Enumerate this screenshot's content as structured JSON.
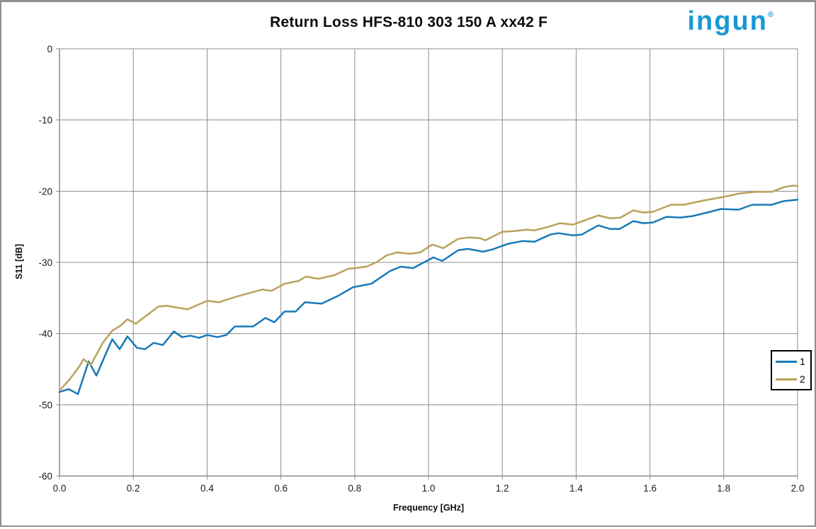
{
  "header": {
    "title": "Return Loss HFS-810 303 150 A xx42 F",
    "logo_text": "ingun",
    "logo_registered": "®",
    "logo_color": "#1899d6"
  },
  "chart_data": {
    "type": "line",
    "title": "Return Loss HFS-810 303 150 A xx42 F",
    "xlabel": "Frequency [GHz]",
    "ylabel": "S11 [dB]",
    "xlim": [
      0.0,
      2.0
    ],
    "ylim": [
      -60,
      0
    ],
    "x_ticks": [
      "0.0",
      "0.2",
      "0.4",
      "0.6",
      "0.8",
      "1.0",
      "1.2",
      "1.4",
      "1.6",
      "1.8",
      "2.0"
    ],
    "y_ticks": [
      "0",
      "-10",
      "-20",
      "-30",
      "-40",
      "-50",
      "-60"
    ],
    "grid": true,
    "legend_position": "right",
    "colors": {
      "grid": "#8c8c8c",
      "axis": "#8c8c8c",
      "tick_label": "#1a1a1a"
    },
    "series": [
      {
        "name": "1",
        "color": "#1879b8",
        "points": [
          [
            0.0,
            -48.2
          ],
          [
            0.025,
            -47.8
          ],
          [
            0.05,
            -48.5
          ],
          [
            0.079,
            -43.9
          ],
          [
            0.1,
            -45.9
          ],
          [
            0.125,
            -42.9
          ],
          [
            0.143,
            -40.8
          ],
          [
            0.163,
            -42.2
          ],
          [
            0.184,
            -40.4
          ],
          [
            0.21,
            -42.0
          ],
          [
            0.232,
            -42.2
          ],
          [
            0.255,
            -41.3
          ],
          [
            0.28,
            -41.6
          ],
          [
            0.31,
            -39.7
          ],
          [
            0.332,
            -40.5
          ],
          [
            0.355,
            -40.3
          ],
          [
            0.378,
            -40.6
          ],
          [
            0.4,
            -40.2
          ],
          [
            0.428,
            -40.5
          ],
          [
            0.452,
            -40.2
          ],
          [
            0.475,
            -39.0
          ],
          [
            0.525,
            -39.0
          ],
          [
            0.558,
            -37.8
          ],
          [
            0.582,
            -38.4
          ],
          [
            0.61,
            -36.9
          ],
          [
            0.64,
            -36.9
          ],
          [
            0.665,
            -35.6
          ],
          [
            0.71,
            -35.8
          ],
          [
            0.755,
            -34.7
          ],
          [
            0.795,
            -33.5
          ],
          [
            0.845,
            -33.0
          ],
          [
            0.896,
            -31.2
          ],
          [
            0.925,
            -30.6
          ],
          [
            0.958,
            -30.8
          ],
          [
            1.013,
            -29.3
          ],
          [
            1.037,
            -29.8
          ],
          [
            1.08,
            -28.3
          ],
          [
            1.107,
            -28.1
          ],
          [
            1.148,
            -28.5
          ],
          [
            1.172,
            -28.2
          ],
          [
            1.215,
            -27.4
          ],
          [
            1.255,
            -27.0
          ],
          [
            1.287,
            -27.1
          ],
          [
            1.33,
            -26.1
          ],
          [
            1.352,
            -25.9
          ],
          [
            1.39,
            -26.2
          ],
          [
            1.415,
            -26.1
          ],
          [
            1.46,
            -24.8
          ],
          [
            1.492,
            -25.3
          ],
          [
            1.518,
            -25.3
          ],
          [
            1.555,
            -24.2
          ],
          [
            1.582,
            -24.5
          ],
          [
            1.608,
            -24.4
          ],
          [
            1.645,
            -23.6
          ],
          [
            1.682,
            -23.7
          ],
          [
            1.715,
            -23.5
          ],
          [
            1.755,
            -23.0
          ],
          [
            1.792,
            -22.5
          ],
          [
            1.84,
            -22.6
          ],
          [
            1.877,
            -21.9
          ],
          [
            1.93,
            -21.9
          ],
          [
            1.962,
            -21.4
          ],
          [
            2.0,
            -21.2
          ]
        ]
      },
      {
        "name": "2",
        "color": "#b9a25a",
        "points": [
          [
            0.0,
            -48.0
          ],
          [
            0.028,
            -46.4
          ],
          [
            0.054,
            -44.6
          ],
          [
            0.065,
            -43.6
          ],
          [
            0.085,
            -44.4
          ],
          [
            0.117,
            -41.3
          ],
          [
            0.143,
            -39.6
          ],
          [
            0.165,
            -38.9
          ],
          [
            0.184,
            -38.0
          ],
          [
            0.207,
            -38.6
          ],
          [
            0.235,
            -37.5
          ],
          [
            0.268,
            -36.2
          ],
          [
            0.292,
            -36.1
          ],
          [
            0.312,
            -36.3
          ],
          [
            0.347,
            -36.6
          ],
          [
            0.4,
            -35.4
          ],
          [
            0.432,
            -35.6
          ],
          [
            0.48,
            -34.8
          ],
          [
            0.55,
            -33.8
          ],
          [
            0.574,
            -34.0
          ],
          [
            0.61,
            -33.0
          ],
          [
            0.648,
            -32.6
          ],
          [
            0.668,
            -32.0
          ],
          [
            0.702,
            -32.3
          ],
          [
            0.745,
            -31.8
          ],
          [
            0.782,
            -30.9
          ],
          [
            0.802,
            -30.8
          ],
          [
            0.832,
            -30.6
          ],
          [
            0.858,
            -30.0
          ],
          [
            0.887,
            -29.0
          ],
          [
            0.915,
            -28.6
          ],
          [
            0.95,
            -28.8
          ],
          [
            0.977,
            -28.6
          ],
          [
            1.01,
            -27.5
          ],
          [
            1.04,
            -28.0
          ],
          [
            1.08,
            -26.7
          ],
          [
            1.107,
            -26.5
          ],
          [
            1.14,
            -26.6
          ],
          [
            1.154,
            -26.9
          ],
          [
            1.2,
            -25.7
          ],
          [
            1.232,
            -25.6
          ],
          [
            1.268,
            -25.4
          ],
          [
            1.287,
            -25.5
          ],
          [
            1.325,
            -25.0
          ],
          [
            1.357,
            -24.5
          ],
          [
            1.392,
            -24.7
          ],
          [
            1.46,
            -23.4
          ],
          [
            1.492,
            -23.8
          ],
          [
            1.52,
            -23.7
          ],
          [
            1.555,
            -22.7
          ],
          [
            1.582,
            -23.0
          ],
          [
            1.608,
            -22.9
          ],
          [
            1.657,
            -21.9
          ],
          [
            1.692,
            -21.9
          ],
          [
            1.747,
            -21.3
          ],
          [
            1.8,
            -20.8
          ],
          [
            1.845,
            -20.3
          ],
          [
            1.887,
            -20.1
          ],
          [
            1.93,
            -20.1
          ],
          [
            1.965,
            -19.4
          ],
          [
            1.99,
            -19.2
          ],
          [
            2.0,
            -19.3
          ]
        ]
      }
    ]
  }
}
